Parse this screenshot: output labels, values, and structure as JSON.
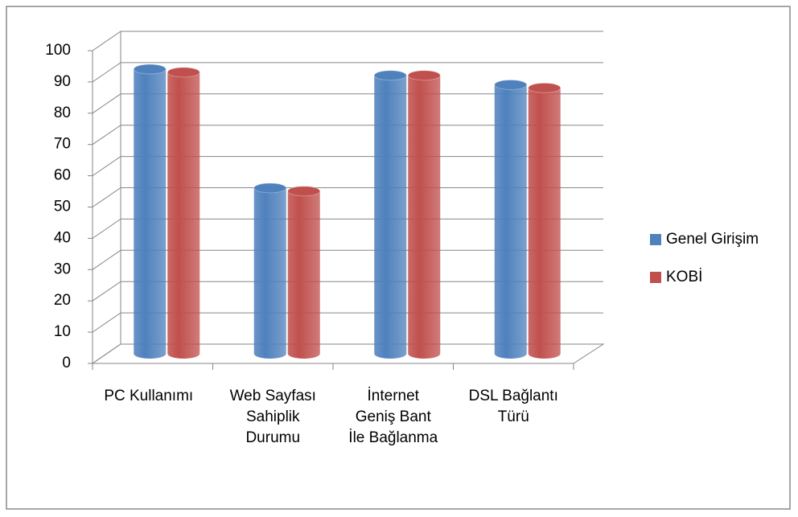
{
  "chart_data": {
    "type": "bar3d",
    "categories": [
      "PC Kullanımı",
      "Web Sayfası Sahiplik Durumu",
      "İnternet Geniş Bant İle Bağlanma",
      "DSL Bağlantı Türü"
    ],
    "series": [
      {
        "name": "Genel Girişim",
        "color": "#4f81bd",
        "values": [
          91,
          53,
          89,
          86
        ]
      },
      {
        "name": "KOBİ",
        "color": "#c0504d",
        "values": [
          90,
          52,
          89,
          85
        ]
      }
    ],
    "ylim": [
      0,
      100
    ],
    "yticks": [
      0,
      10,
      20,
      30,
      40,
      50,
      60,
      70,
      80,
      90,
      100
    ],
    "grid": true,
    "legend": "right"
  }
}
